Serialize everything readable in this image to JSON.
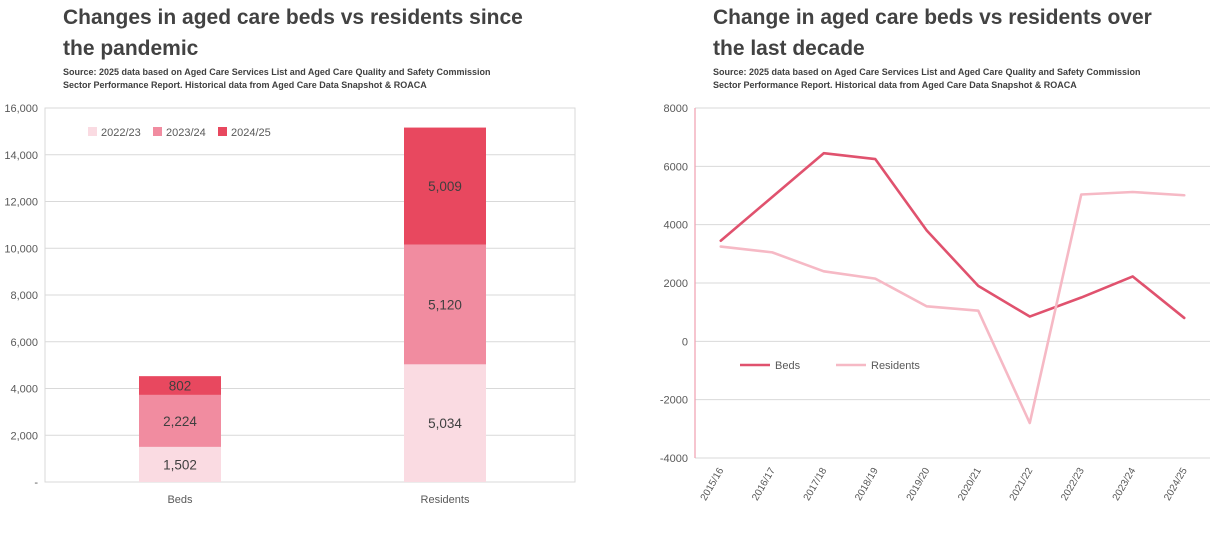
{
  "source_lines": [
    "Source: 2025 data based on Aged Care Services List and Aged Care Quality and Safety Commission",
    "Sector Performance Report. Historical data from Aged Care Data Snapshot & ROACA"
  ],
  "colors": {
    "grid": "#d9d9d9",
    "axis_text": "#595959",
    "title_text": "#424242",
    "bar_label_text": "#3f3f3f",
    "right_axis_line": "#f0a6b5"
  },
  "chart_data": [
    {
      "type": "bar",
      "stacked": true,
      "title": "Changes in aged care beds vs residents since the pandemic",
      "categories": [
        "Beds",
        "Residents"
      ],
      "series": [
        {
          "name": "2022/23",
          "color": "#fadbe2",
          "values": [
            1502,
            5034
          ]
        },
        {
          "name": "2023/24",
          "color": "#f18ca0",
          "values": [
            2224,
            5120
          ]
        },
        {
          "name": "2024/25",
          "color": "#e8485f",
          "values": [
            802,
            5009
          ]
        }
      ],
      "ylim": [
        0,
        16000
      ],
      "ytick_step": 2000,
      "ytick_labels": [
        "-",
        "2,000",
        "4,000",
        "6,000",
        "8,000",
        "10,000",
        "12,000",
        "14,000",
        "16,000"
      ],
      "grid": true,
      "legend_position": "top-left-inside",
      "data_labels": true,
      "segment_labels": {
        "Beds": [
          "1,502",
          "2,224",
          "802"
        ],
        "Residents": [
          "5,034",
          "5,120",
          "5,009"
        ]
      }
    },
    {
      "type": "line",
      "title": "Change in aged care beds vs residents over the last decade",
      "categories": [
        "2015/16",
        "2016/17",
        "2017/18",
        "2018/19",
        "2019/20",
        "2020/21",
        "2021/22",
        "2022/23",
        "2023/24",
        "2024/25"
      ],
      "series": [
        {
          "name": "Beds",
          "color": "#e0526e",
          "values": [
            3450,
            4950,
            6450,
            6250,
            3800,
            1900,
            850,
            1502,
            2224,
            802
          ]
        },
        {
          "name": "Residents",
          "color": "#f6b9c5",
          "values": [
            3250,
            3050,
            2400,
            2150,
            1200,
            1050,
            -2800,
            5034,
            5120,
            5009
          ]
        }
      ],
      "ylim": [
        -4000,
        8000
      ],
      "ytick_step": 2000,
      "ytick_labels": [
        "-4000",
        "-2000",
        "0",
        "2000",
        "4000",
        "6000",
        "8000"
      ],
      "grid": true,
      "legend_position": "inside-middle-left"
    }
  ]
}
